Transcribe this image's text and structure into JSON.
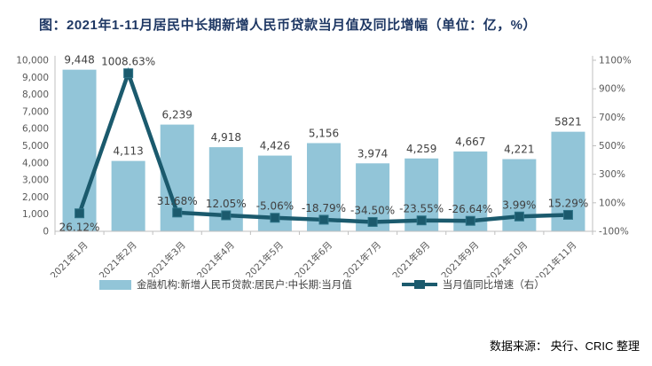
{
  "title": "图：2021年1-11月居民中长期新增人民币贷款当月值及同比增幅（单位：亿，%）",
  "footer": {
    "source_text": "数据来源： 央行、CRIC 整理"
  },
  "legend": {
    "bar_label": "金融机构:新增人民币贷款:居民户:中长期:当月值",
    "line_label": "当月值同比增速（右）"
  },
  "colors": {
    "bar": "#92C5D8",
    "line": "#1B5A6D",
    "line_marker_border": "#2F7488",
    "title": "#1F3864",
    "axis_line": "#BFBFBF",
    "axis_text": "#595959",
    "data_label": "#404040"
  },
  "chart_data": {
    "type": "bar",
    "subtype": "combo-bar-line-dual-axis",
    "title": "图：2021年1-11月居民中长期新增人民币贷款当月值及同比增幅（单位：亿，%）",
    "categories": [
      "2021年1月",
      "2021年2月",
      "2021年3月",
      "2021年4月",
      "2021年5月",
      "2021年6月",
      "2021年7月",
      "2021年8月",
      "2021年9月",
      "2021年10月",
      "2021年11月"
    ],
    "series": [
      {
        "name": "金融机构:新增人民币贷款:居民户:中长期:当月值",
        "type": "bar",
        "axis": "left",
        "values": [
          9448,
          4113,
          6239,
          4918,
          4426,
          5156,
          3974,
          4259,
          4667,
          4221,
          5821
        ],
        "labels": [
          "9,448",
          "4,113",
          "6,239",
          "4,918",
          "4,426",
          "5,156",
          "3,974",
          "4,259",
          "4,667",
          "4,221",
          "5821"
        ]
      },
      {
        "name": "当月值同比增速（右）",
        "type": "line",
        "axis": "right",
        "values": [
          26.12,
          1008.63,
          31.68,
          12.05,
          -5.06,
          -18.79,
          -34.5,
          -23.55,
          -26.64,
          3.99,
          15.29
        ],
        "labels": [
          "26.12%",
          "1008.63%",
          "31.68%",
          "12.05%",
          "-5.06%",
          "-18.79%",
          "-34.50%",
          "-23.55%",
          "-26.64%",
          "3.99%",
          "15.29%"
        ]
      }
    ],
    "left_axis": {
      "min": 0,
      "max": 10000,
      "step": 1000,
      "tick_labels": [
        "0",
        "1,000",
        "2,000",
        "3,000",
        "4,000",
        "5,000",
        "6,000",
        "7,000",
        "8,000",
        "9,000",
        "10,000"
      ]
    },
    "right_axis": {
      "min": -100,
      "max": 1100,
      "step": 200,
      "tick_labels": [
        "-100%",
        "100%",
        "300%",
        "500%",
        "700%",
        "900%",
        "1100%"
      ]
    },
    "grid": false,
    "legend_position": "bottom"
  }
}
